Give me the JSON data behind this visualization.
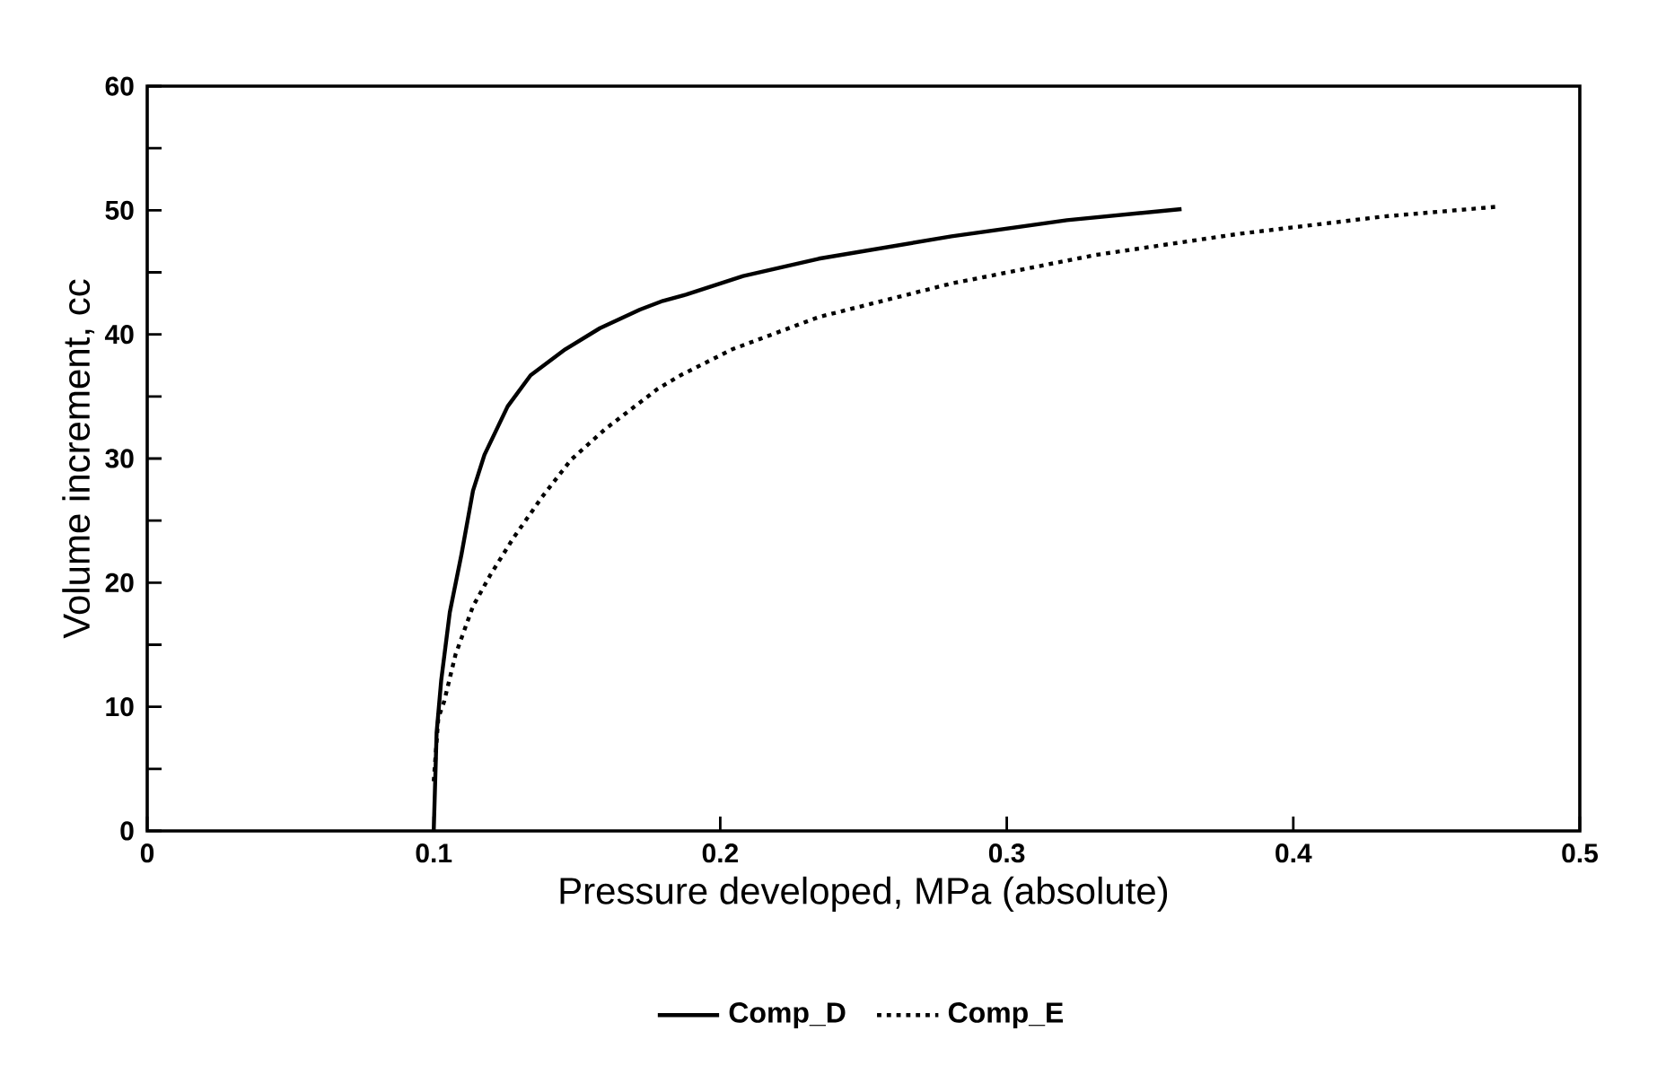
{
  "chart_data": {
    "type": "line",
    "xlabel": "Pressure developed, MPa (absolute)",
    "ylabel": "Volume increment, cc",
    "xlim": [
      0,
      0.5
    ],
    "ylim": [
      0,
      60
    ],
    "xticks": [
      0,
      0.1,
      0.2,
      0.3,
      0.4,
      0.5
    ],
    "yticks": [
      0,
      {
        "value": 5,
        "label": null
      },
      10,
      {
        "value": 15,
        "label": null
      },
      20,
      {
        "value": 25,
        "label": null
      },
      30,
      {
        "value": 35,
        "label": null
      },
      40,
      {
        "value": 45,
        "label": null
      },
      50,
      {
        "value": 55,
        "label": null
      },
      60
    ],
    "legend": "bottom",
    "marker": "none",
    "grid": false,
    "series": [
      {
        "name": "Comp_D",
        "color": "#000000",
        "line_style": "solid",
        "x": [
          0.1,
          0.101,
          0.1026,
          0.1056,
          0.1097,
          0.1137,
          0.1177,
          0.1258,
          0.1338,
          0.1459,
          0.158,
          0.172,
          0.18,
          0.188,
          0.208,
          0.2344,
          0.2807,
          0.321,
          0.361
        ],
        "values": [
          0,
          7.9,
          12.1,
          17.6,
          22.3,
          27.4,
          30.3,
          34.2,
          36.7,
          38.8,
          40.5,
          42.0,
          42.7,
          43.2,
          44.7,
          46.1,
          47.9,
          49.2,
          50.1
        ]
      },
      {
        "name": "Comp_E",
        "color": "#000000",
        "line_style": "dotted",
        "x": [
          0.1,
          0.1016,
          0.1036,
          0.1076,
          0.1137,
          0.1197,
          0.1278,
          0.1378,
          0.1479,
          0.16,
          0.1781,
          0.1861,
          0.2042,
          0.2344,
          0.2807,
          0.331,
          0.381,
          0.4316,
          0.4718
        ],
        "values": [
          4,
          9.1,
          10.4,
          14.2,
          18.1,
          20.6,
          23.6,
          26.9,
          29.9,
          32.4,
          35.6,
          36.7,
          38.8,
          41.4,
          44.1,
          46.4,
          48.1,
          49.5,
          50.3
        ]
      }
    ]
  }
}
